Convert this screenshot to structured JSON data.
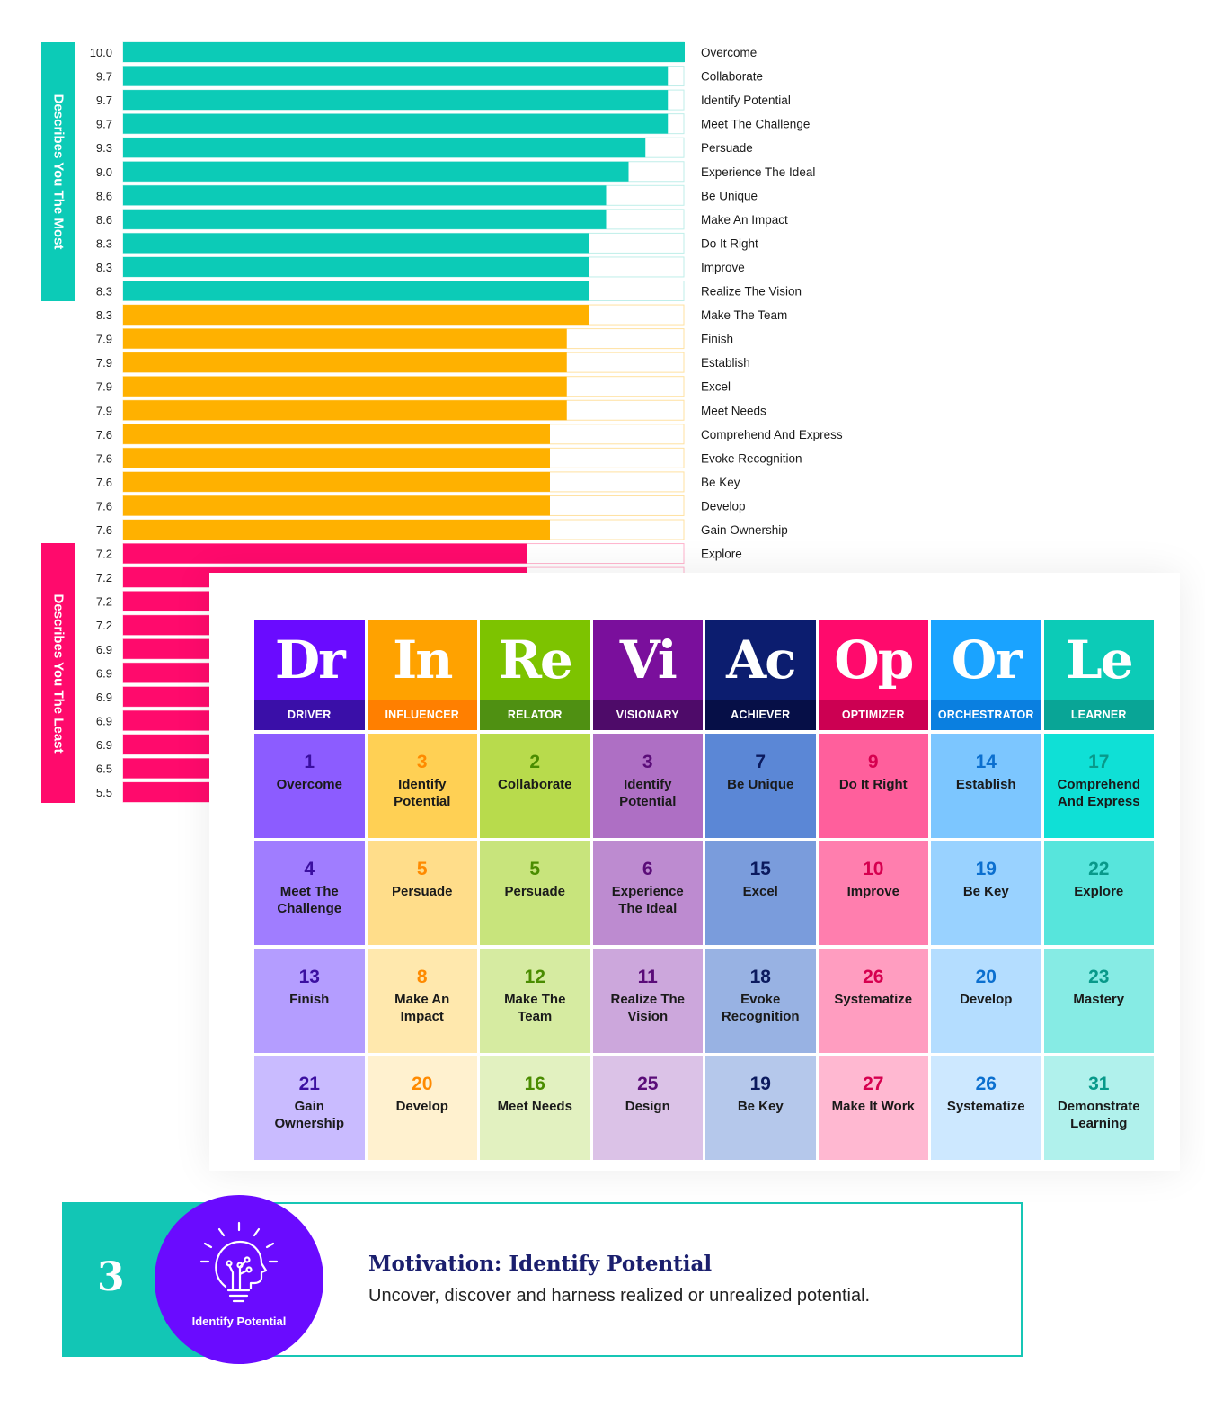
{
  "side_tabs": {
    "most": "Describes You The Most",
    "least": "Describes You The Least"
  },
  "colors": {
    "teal": "#0ccbb7",
    "orange": "#ffb100",
    "pink": "#ff0a6c"
  },
  "chart_data": {
    "type": "bar",
    "orientation": "horizontal",
    "xlim": [
      0,
      10
    ],
    "grid": false,
    "bars": [
      {
        "value": 10.0,
        "label": "Overcome",
        "group": "most"
      },
      {
        "value": 9.7,
        "label": "Collaborate",
        "group": "most"
      },
      {
        "value": 9.7,
        "label": "Identify Potential",
        "group": "most"
      },
      {
        "value": 9.7,
        "label": "Meet The Challenge",
        "group": "most"
      },
      {
        "value": 9.3,
        "label": "Persuade",
        "group": "most"
      },
      {
        "value": 9.0,
        "label": "Experience The Ideal",
        "group": "most"
      },
      {
        "value": 8.6,
        "label": "Be Unique",
        "group": "most"
      },
      {
        "value": 8.6,
        "label": "Make An Impact",
        "group": "most"
      },
      {
        "value": 8.3,
        "label": "Do It Right",
        "group": "most"
      },
      {
        "value": 8.3,
        "label": "Improve",
        "group": "most"
      },
      {
        "value": 8.3,
        "label": "Realize The Vision",
        "group": "most"
      },
      {
        "value": 8.3,
        "label": "Make The Team",
        "group": "middle"
      },
      {
        "value": 7.9,
        "label": "Finish",
        "group": "middle"
      },
      {
        "value": 7.9,
        "label": "Establish",
        "group": "middle"
      },
      {
        "value": 7.9,
        "label": "Excel",
        "group": "middle"
      },
      {
        "value": 7.9,
        "label": "Meet Needs",
        "group": "middle"
      },
      {
        "value": 7.6,
        "label": "Comprehend And Express",
        "group": "middle"
      },
      {
        "value": 7.6,
        "label": "Evoke Recognition",
        "group": "middle"
      },
      {
        "value": 7.6,
        "label": "Be Key",
        "group": "middle"
      },
      {
        "value": 7.6,
        "label": "Develop",
        "group": "middle"
      },
      {
        "value": 7.6,
        "label": "Gain Ownership",
        "group": "middle"
      },
      {
        "value": 7.2,
        "label": "Explore",
        "group": "least"
      },
      {
        "value": 7.2,
        "label": "",
        "group": "least"
      },
      {
        "value": 7.2,
        "label": "",
        "group": "least"
      },
      {
        "value": 7.2,
        "label": "",
        "group": "least"
      },
      {
        "value": 6.9,
        "label": "",
        "group": "least"
      },
      {
        "value": 6.9,
        "label": "",
        "group": "least"
      },
      {
        "value": 6.9,
        "label": "",
        "group": "least"
      },
      {
        "value": 6.9,
        "label": "",
        "group": "least"
      },
      {
        "value": 6.9,
        "label": "",
        "group": "least"
      },
      {
        "value": 6.5,
        "label": "",
        "group": "least"
      },
      {
        "value": 5.5,
        "label": "",
        "group": "least"
      }
    ]
  },
  "table": {
    "columns": [
      {
        "abbr": "Dr",
        "name": "DRIVER",
        "head": "#6a0bff",
        "sub": "#3a0fa8",
        "num": "#3b0fa0",
        "cells": [
          {
            "num": "1",
            "label": "Overcome",
            "bg": "#8c5cff"
          },
          {
            "num": "4",
            "label": "Meet The Challenge",
            "bg": "#a07dff"
          },
          {
            "num": "13",
            "label": "Finish",
            "bg": "#b49dff"
          },
          {
            "num": "21",
            "label": "Gain Ownership",
            "bg": "#c9bbff"
          }
        ]
      },
      {
        "abbr": "In",
        "name": "INFLUENCER",
        "head": "#ffa200",
        "sub": "#ff7f00",
        "num": "#ff8a00",
        "cells": [
          {
            "num": "3",
            "label": "Identify Potential",
            "bg": "#ffd054"
          },
          {
            "num": "5",
            "label": "Persuade",
            "bg": "#ffdd8a"
          },
          {
            "num": "8",
            "label": "Make An Impact",
            "bg": "#ffe8ad"
          },
          {
            "num": "20",
            "label": "Develop",
            "bg": "#fff1cf"
          }
        ]
      },
      {
        "abbr": "Re",
        "name": "RELATOR",
        "head": "#7dc300",
        "sub": "#4f9012",
        "num": "#4a8c00",
        "cells": [
          {
            "num": "2",
            "label": "Collaborate",
            "bg": "#b8db4c"
          },
          {
            "num": "5",
            "label": "Persuade",
            "bg": "#c8e47c"
          },
          {
            "num": "12",
            "label": "Make The Team",
            "bg": "#d6eba1"
          },
          {
            "num": "16",
            "label": "Meet Needs",
            "bg": "#e2f1c0"
          }
        ]
      },
      {
        "abbr": "Vi",
        "name": "VISIONARY",
        "head": "#7a0f9c",
        "sub": "#4e0b69",
        "num": "#5a0c78",
        "cells": [
          {
            "num": "3",
            "label": "Identify Potential",
            "bg": "#ae6fc4"
          },
          {
            "num": "6",
            "label": "Experience The Ideal",
            "bg": "#bd8bd0"
          },
          {
            "num": "11",
            "label": "Realize The Vision",
            "bg": "#cca7dc"
          },
          {
            "num": "25",
            "label": "Design",
            "bg": "#dbc2e7"
          }
        ]
      },
      {
        "abbr": "Ac",
        "name": "ACHIEVER",
        "head": "#0c1d6f",
        "sub": "#060f47",
        "num": "#0b1a5e",
        "cells": [
          {
            "num": "7",
            "label": "Be Unique",
            "bg": "#5b87d6"
          },
          {
            "num": "15",
            "label": "Excel",
            "bg": "#7a9cdc"
          },
          {
            "num": "18",
            "label": "Evoke Recognition",
            "bg": "#98b2e3"
          },
          {
            "num": "19",
            "label": "Be Key",
            "bg": "#b5c8eb"
          }
        ]
      },
      {
        "abbr": "Op",
        "name": "OPTIMIZER",
        "head": "#ff0a6c",
        "sub": "#cc0052",
        "num": "#d6004f",
        "cells": [
          {
            "num": "9",
            "label": "Do It Right",
            "bg": "#ff5f9c"
          },
          {
            "num": "10",
            "label": "Improve",
            "bg": "#ff7eae"
          },
          {
            "num": "26",
            "label": "Systematize",
            "bg": "#ff9dc0"
          },
          {
            "num": "27",
            "label": "Make It Work",
            "bg": "#ffb8d1"
          }
        ]
      },
      {
        "abbr": "Or",
        "name": "ORCHESTRATOR",
        "head": "#1aa3ff",
        "sub": "#0a7fe0",
        "num": "#0b6fcf",
        "cells": [
          {
            "num": "14",
            "label": "Establish",
            "bg": "#7cc6ff"
          },
          {
            "num": "19",
            "label": "Be Key",
            "bg": "#99d2ff"
          },
          {
            "num": "20",
            "label": "Develop",
            "bg": "#b4ddff"
          },
          {
            "num": "26",
            "label": "Systematize",
            "bg": "#cde8ff"
          }
        ]
      },
      {
        "abbr": "Le",
        "name": "LEARNER",
        "head": "#0ccbb7",
        "sub": "#09a596",
        "num": "#08998a",
        "cells": [
          {
            "num": "17",
            "label": "Comprehend And Express",
            "bg": "#0fe0d6"
          },
          {
            "num": "22",
            "label": "Explore",
            "bg": "#57e5dc"
          },
          {
            "num": "23",
            "label": "Mastery",
            "bg": "#86ebe4"
          },
          {
            "num": "31",
            "label": "Demonstrate Learning",
            "bg": "#b0f1ec"
          }
        ]
      }
    ]
  },
  "banner": {
    "number": "3",
    "icon": "lightbulb-head-icon",
    "icon_label": "Identify Potential",
    "title": "Motivation: Identify Potential",
    "description": "Uncover, discover and harness realized or unrealized potential."
  }
}
